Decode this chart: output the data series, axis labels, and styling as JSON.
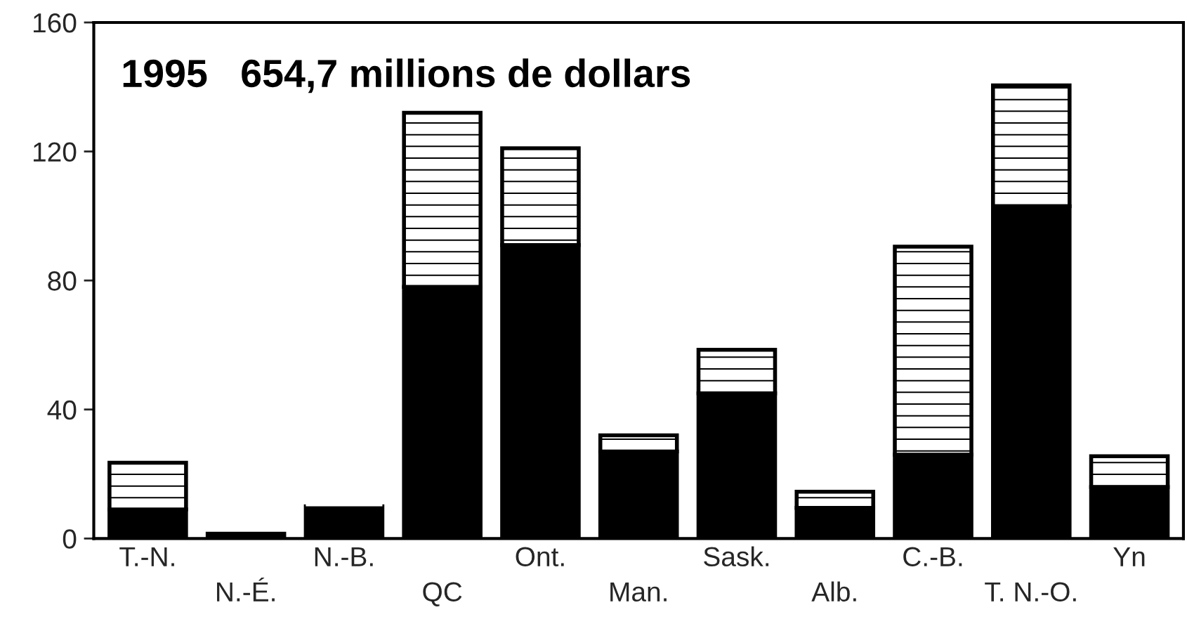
{
  "chart_data": {
    "type": "bar",
    "title": "1995   654,7 millions de dollars",
    "stacked": true,
    "categories": [
      "T.-N.",
      "N.-É.",
      "N.-B.",
      "QC",
      "Ont.",
      "Man.",
      "Sask.",
      "Alb.",
      "C.-B.",
      "T. N.-O.",
      "Yn"
    ],
    "series": [
      {
        "color": "#000000",
        "values": [
          9,
          1.5,
          10,
          78,
          91,
          27,
          45,
          9.5,
          26,
          103,
          16
        ]
      },
      {
        "color": "#ffffff",
        "values": [
          14.5,
          0,
          1,
          54,
          30,
          5,
          13.5,
          5,
          64.5,
          37.5,
          9.5
        ]
      }
    ],
    "ylim": [
      0,
      160
    ],
    "yticks": [
      0,
      40,
      80,
      120,
      160
    ],
    "grid": false,
    "legend": false
  }
}
